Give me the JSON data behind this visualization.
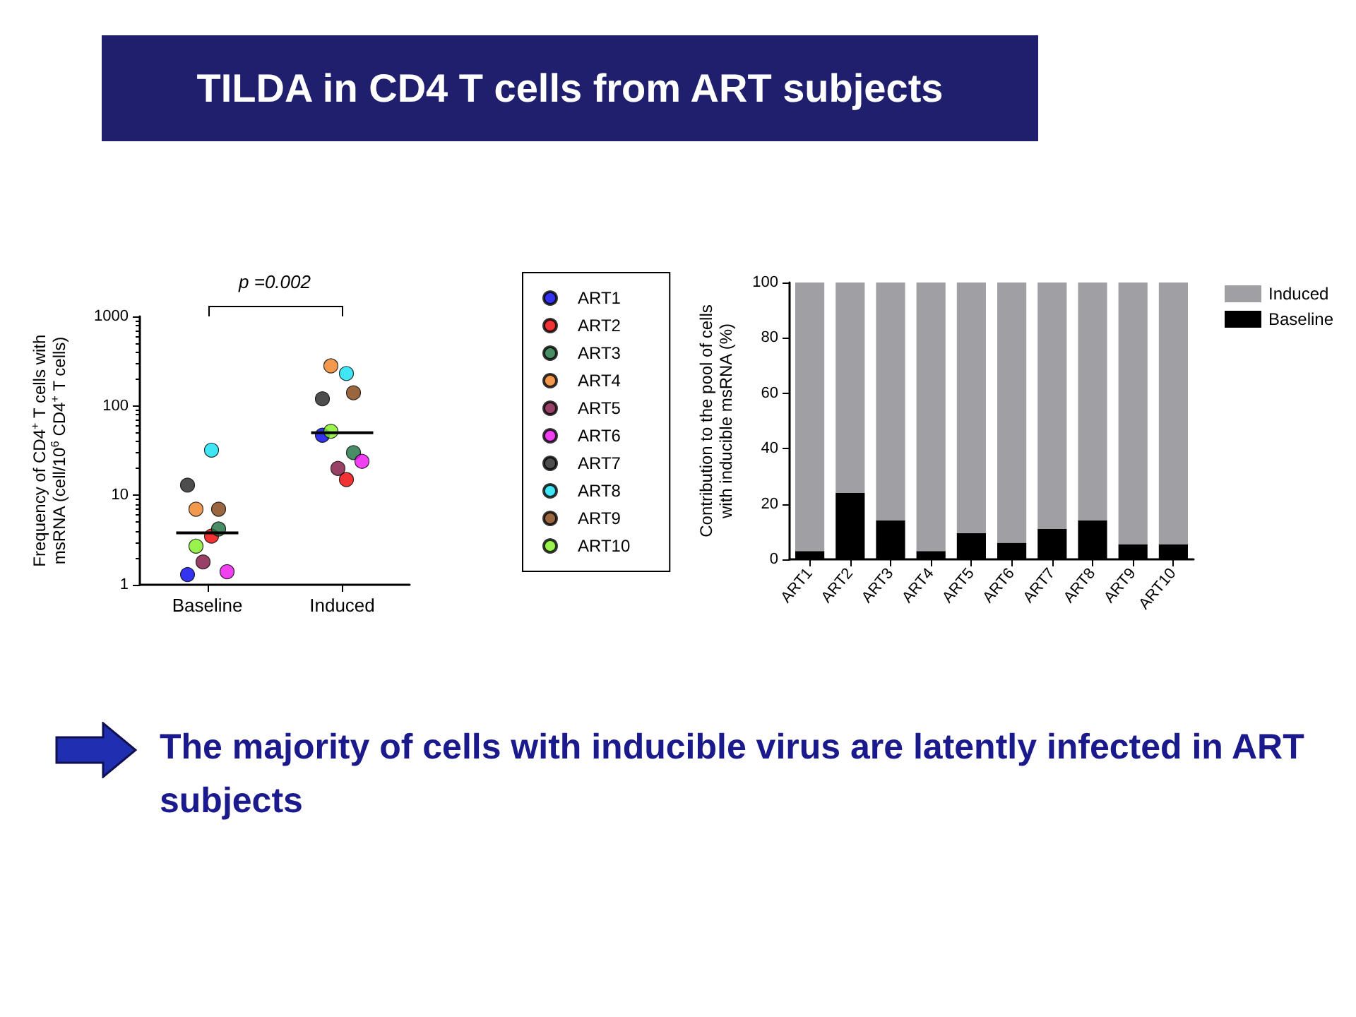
{
  "chart_data": [
    {
      "type": "scatter",
      "title": "TILDA in CD4 T cells from ART subjects",
      "ylabel": "Frequency of CD4$^{+}$ T cells with msRNA (cell/10$^{6}$ CD4$^{+}$ T cells)",
      "annotations": [
        "p =0.002",
        "The majority of cells with inducible virus are latently infected in ART subjects"
      ],
      "categories": [
        "Baseline",
        "Induced"
      ],
      "log": true,
      "ylim": [
        1,
        1000
      ],
      "yticks": [
        1,
        10,
        100,
        1000
      ],
      "grid": false,
      "legend": "right",
      "marker": "circle",
      "series": [
        {
          "name": "ART1",
          "color": "#0000ee",
          "x": [
            "Baseline",
            "Induced"
          ],
          "values": [
            1.3,
            47
          ]
        },
        {
          "name": "ART2",
          "color": "#ee0000",
          "x": [
            "Baseline",
            "Induced"
          ],
          "values": [
            3.5,
            15
          ]
        },
        {
          "name": "ART3",
          "color": "#1a7040",
          "x": [
            "Baseline",
            "Induced"
          ],
          "values": [
            4.2,
            30
          ]
        },
        {
          "name": "ART4",
          "color": "#f08020",
          "x": [
            "Baseline",
            "Induced"
          ],
          "values": [
            7,
            280
          ]
        },
        {
          "name": "ART5",
          "color": "#801040",
          "x": [
            "Baseline",
            "Induced"
          ],
          "values": [
            1.8,
            20
          ]
        },
        {
          "name": "ART6",
          "color": "#ee10ee",
          "x": [
            "Baseline",
            "Induced"
          ],
          "values": [
            1.4,
            24
          ]
        },
        {
          "name": "ART7",
          "color": "#202020",
          "x": [
            "Baseline",
            "Induced"
          ],
          "values": [
            13,
            120
          ]
        },
        {
          "name": "ART8",
          "color": "#10e0f0",
          "x": [
            "Baseline",
            "Induced"
          ],
          "values": [
            32,
            230
          ]
        },
        {
          "name": "ART9",
          "color": "#804010",
          "x": [
            "Baseline",
            "Induced"
          ],
          "values": [
            7,
            140
          ]
        },
        {
          "name": "ART10",
          "color": "#80f020",
          "x": [
            "Baseline",
            "Induced"
          ],
          "values": [
            2.7,
            52
          ]
        },
        {
          "type": "box",
          "color": "#000000",
          "boxes": [
            {
              "low": 3.8,
              "q1": 3.8,
              "median": 3.8,
              "q3": 3.8,
              "high": 3.8
            },
            {
              "low": 50,
              "q1": 50,
              "median": 50,
              "q3": 50,
              "high": 50
            }
          ]
        }
      ]
    },
    {
      "type": "bar",
      "stacked": true,
      "ylabel": "Contribution to the pool of cells with inducible msRNA (%)",
      "categories": [
        "ART1",
        "ART2",
        "ART3",
        "ART4",
        "ART5",
        "ART6",
        "ART7",
        "ART8",
        "ART9",
        "ART10"
      ],
      "ylim": [
        0,
        100
      ],
      "yticks": [
        0,
        20,
        40,
        60,
        80,
        100
      ],
      "grid": false,
      "legend": "top right",
      "series": [
        {
          "name": "Baseline",
          "color": "#000000",
          "values": [
            3,
            24,
            14,
            3,
            9.5,
            6,
            11,
            14,
            5.5,
            5.5
          ]
        },
        {
          "name": "Induced",
          "color": "#a0a0a4",
          "values": [
            97,
            76,
            86,
            97,
            90.5,
            94,
            89,
            86,
            94.5,
            94.5
          ]
        }
      ]
    }
  ]
}
